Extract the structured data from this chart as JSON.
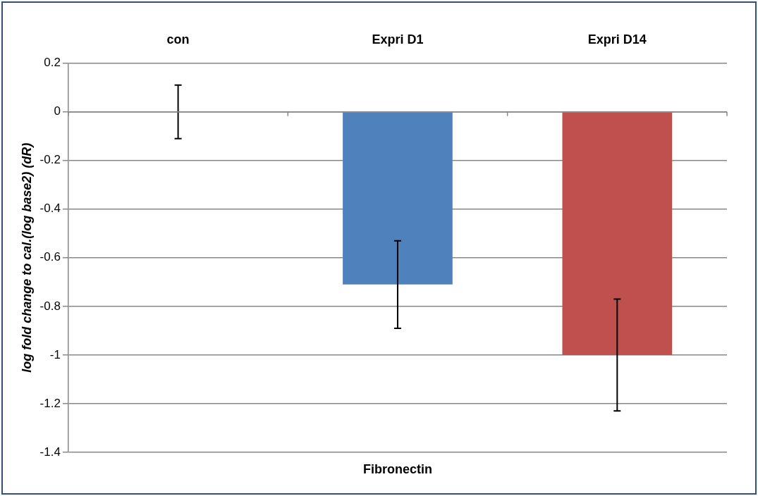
{
  "chart_data": {
    "type": "bar",
    "xlabel": "Fibronectin",
    "ylabel": "log fold change to cal.(log base2) (dR)",
    "categories": [
      "con",
      "Expri D1",
      "Expri D14"
    ],
    "values": [
      0,
      -0.71,
      -1.0
    ],
    "colors": [
      "#4f81bd",
      "#4f81bd",
      "#c0504d"
    ],
    "errors": [
      0.11,
      0.18,
      0.23
    ],
    "ylim": [
      -1.4,
      0.2
    ],
    "yticks": [
      0.2,
      0,
      -0.2,
      -0.4,
      -0.6,
      -0.8,
      -1,
      -1.2,
      -1.4
    ],
    "grid": "y",
    "legend": false
  }
}
